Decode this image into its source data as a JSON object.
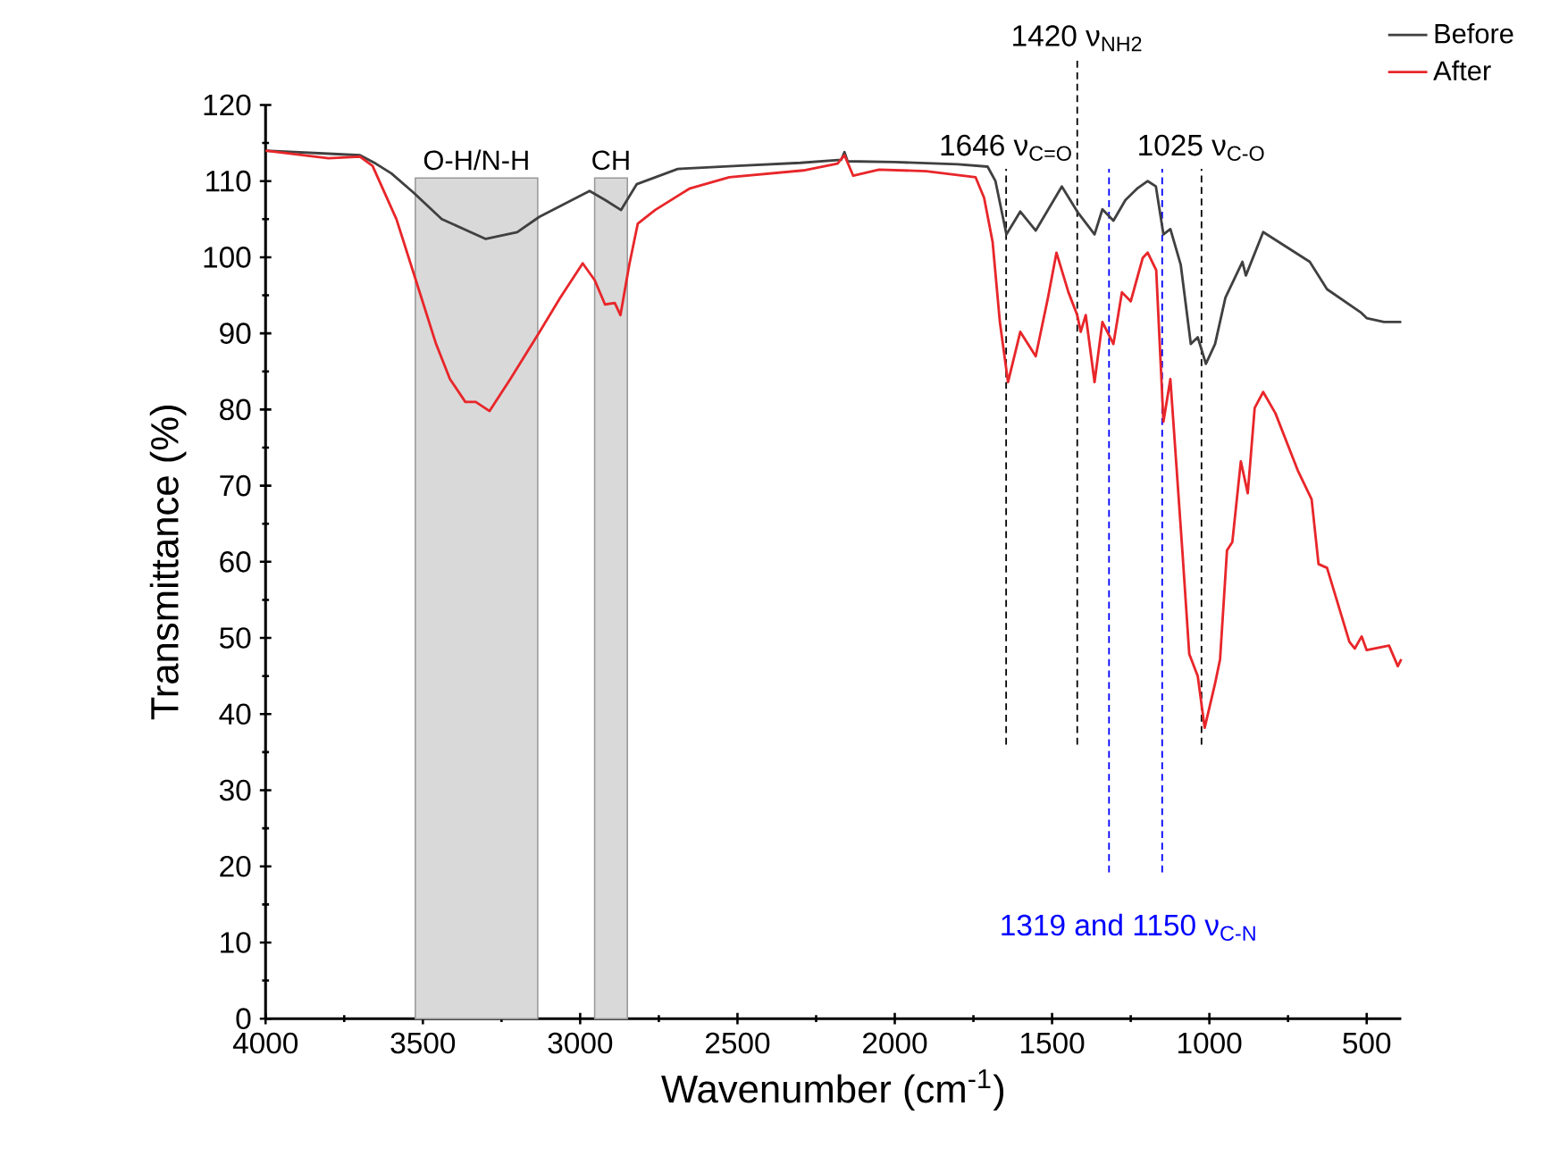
{
  "chart_data": {
    "type": "line",
    "xlabel": "Wavenumber (cm$^{-1}$)",
    "ylabel": "Transmittance (%)",
    "xlim": [
      4000,
      390
    ],
    "xticks": [
      4000,
      3500,
      3000,
      2500,
      2000,
      1500,
      1000,
      500
    ],
    "ylim": [
      0,
      120
    ],
    "yticks": [
      0,
      10,
      20,
      30,
      40,
      50,
      60,
      70,
      80,
      90,
      100,
      110,
      120
    ],
    "legend": "top right",
    "series": [
      {
        "name": "Before",
        "color": "#404040",
        "x": [
          4000,
          3800,
          3700,
          3650,
          3600,
          3530,
          3440,
          3300,
          3200,
          3130,
          3050,
          2970,
          2920,
          2870,
          2820,
          2690,
          2500,
          2300,
          2170,
          2160,
          2150,
          2000,
          1800,
          1705,
          1680,
          1645,
          1601,
          1552,
          1469,
          1420,
          1365,
          1340,
          1305,
          1267,
          1230,
          1196,
          1170,
          1146,
          1124,
          1091,
          1059,
          1037,
          1011,
          982,
          949,
          895,
          884,
          829,
          681,
          664,
          626,
          517,
          500,
          445,
          390
        ],
        "values": [
          114,
          113.6,
          113.4,
          112.3,
          111,
          108.5,
          105,
          102.4,
          103.3,
          105.3,
          107,
          108.7,
          107.5,
          106.2,
          109.6,
          111.6,
          112,
          112.4,
          112.8,
          113.8,
          112.6,
          112.5,
          112.2,
          111.9,
          110,
          103,
          106,
          103.5,
          109.3,
          106,
          103,
          106.3,
          104.8,
          107.5,
          109,
          110,
          109.3,
          103,
          103.7,
          99,
          88.6,
          89.5,
          86,
          88.6,
          94.7,
          99.4,
          97.6,
          103.3,
          99.4,
          98.3,
          95.8,
          92.7,
          92,
          91.5,
          91.5
        ]
      },
      {
        "name": "After",
        "color": "#e8262a",
        "x": [
          4000,
          3800,
          3700,
          3660,
          3584,
          3524,
          3458,
          3414,
          3365,
          3332,
          3288,
          3222,
          3129,
          3063,
          2992,
          2954,
          2921,
          2890,
          2872,
          2844,
          2817,
          2762,
          2653,
          2526,
          2291,
          2182,
          2160,
          2132,
          2050,
          1900,
          1743,
          1716,
          1689,
          1666,
          1640,
          1601,
          1552,
          1513,
          1486,
          1448,
          1420,
          1409,
          1393,
          1365,
          1340,
          1305,
          1278,
          1250,
          1212,
          1196,
          1169,
          1146,
          1124,
          1086,
          1064,
          1037,
          1015,
          982,
          966,
          944,
          927,
          900,
          878,
          856,
          829,
          790,
          719,
          675,
          653,
          626,
          555,
          538,
          516,
          500,
          429,
          401,
          390
        ],
        "values": [
          114,
          113,
          113.2,
          112,
          105,
          97.2,
          88.6,
          84,
          81,
          81,
          79.8,
          84,
          90.2,
          94.7,
          99.2,
          97,
          93.8,
          94,
          92.4,
          99,
          104.4,
          106.2,
          109,
          110.5,
          111.4,
          112.3,
          113.4,
          110.7,
          111.5,
          111.3,
          110.5,
          107.8,
          102,
          91.5,
          83.6,
          90.2,
          87,
          94.7,
          100.6,
          95.4,
          92.4,
          90.2,
          92.4,
          83.6,
          91.5,
          88.6,
          95.4,
          94.2,
          99.9,
          100.6,
          98.3,
          78.4,
          84,
          61.5,
          47.9,
          45,
          38.2,
          44,
          47.2,
          61.5,
          62.6,
          73.2,
          69,
          80.2,
          82.3,
          79.5,
          72,
          68.2,
          59.7,
          59.2,
          49.5,
          48.6,
          50.2,
          48.4,
          49,
          46.3,
          47.2
        ]
      }
    ],
    "bands": [
      {
        "axis": "x",
        "from": 3524,
        "to": 3135,
        "label": "O-H/N-H",
        "color": "#d9d9d9"
      },
      {
        "axis": "x",
        "from": 2954,
        "to": 2850,
        "label": "CH",
        "color": "#d9d9d9"
      }
    ],
    "ref_lines": [
      {
        "axis": "x",
        "value": 1646,
        "label": "1646 ν$_{C=O}$",
        "color": "#000000",
        "line_style": "dashed"
      },
      {
        "axis": "x",
        "value": 1420,
        "label": "1420 ν$_{NH2}$",
        "color": "#000000",
        "line_style": "dashed"
      },
      {
        "axis": "x",
        "value": 1025,
        "label": "1025 ν$_{C-O}$",
        "color": "#000000",
        "line_style": "dashed"
      },
      {
        "axis": "x",
        "value": 1319,
        "color": "#0000ff",
        "line_style": "dashed"
      },
      {
        "axis": "x",
        "value": 1150,
        "color": "#0000ff",
        "line_style": "dashed"
      }
    ],
    "annotations": [
      "1319 and 1150 ν$_{C-N}$"
    ]
  }
}
